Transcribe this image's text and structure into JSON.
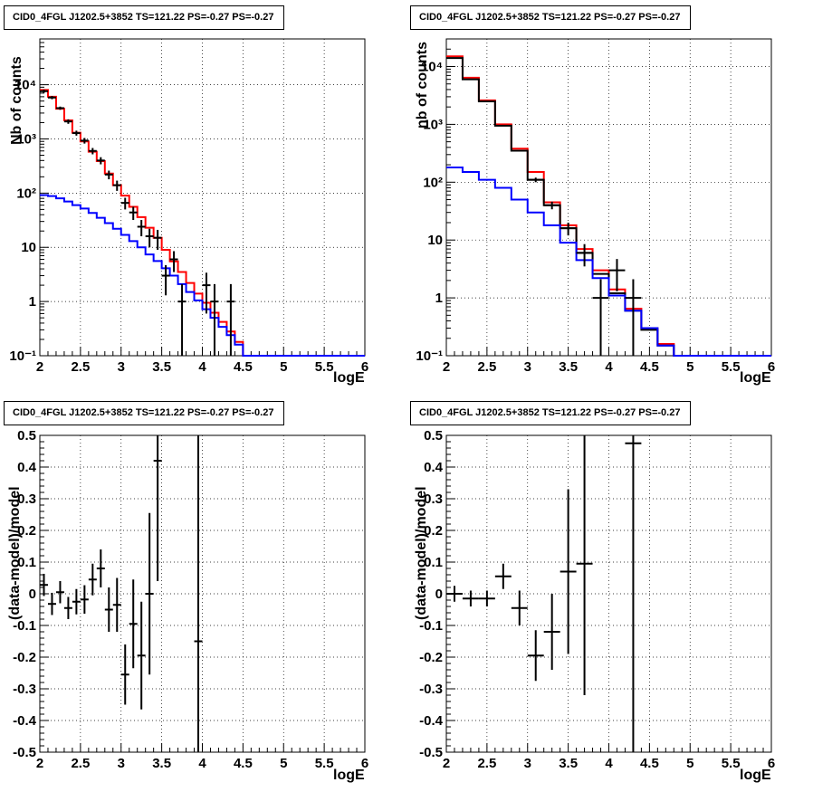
{
  "chart_data": [
    {
      "type": "step-histogram",
      "title": "CID0_4FGL J1202.5+3852 TS=121.22 PS=-0.27 PS=-0.27",
      "xlabel": "logE",
      "ylabel": "Nb of counts",
      "xlim": [
        2,
        6
      ],
      "ylim": [
        0.1,
        70000
      ],
      "yscale": "log",
      "grid": true,
      "x_ticks": [
        "2",
        "2.5",
        "3",
        "3.5",
        "4",
        "4.5",
        "5",
        "5.5",
        "6"
      ],
      "y_ticks": [
        {
          "value": 0.1,
          "label": "10⁻¹"
        },
        {
          "value": 1,
          "label": "1"
        },
        {
          "value": 10,
          "label": "10"
        },
        {
          "value": 100,
          "label": "10²"
        },
        {
          "value": 1000,
          "label": "10³"
        },
        {
          "value": 10000,
          "label": "10⁴"
        }
      ],
      "bin_edges": [
        2.0,
        2.1,
        2.2,
        2.3,
        2.4,
        2.5,
        2.6,
        2.7,
        2.8,
        2.9,
        3.0,
        3.1,
        3.2,
        3.3,
        3.4,
        3.5,
        3.6,
        3.7,
        3.8,
        3.9,
        4.0,
        4.1,
        4.2,
        4.3,
        4.4,
        4.5,
        4.6,
        4.7,
        4.8,
        4.9,
        5.0,
        5.1,
        5.2,
        5.3,
        5.4,
        5.5,
        5.6,
        5.7,
        5.8,
        5.9,
        6.0
      ],
      "series": [
        {
          "color": "#ff0000",
          "values": [
            8000,
            6000,
            3600,
            2200,
            1300,
            900,
            580,
            390,
            230,
            140,
            90,
            56,
            36,
            23,
            15,
            9,
            5.5,
            3.5,
            2.2,
            1.4,
            0.95,
            0.62,
            0.42,
            0.28,
            0.18,
            0.1,
            0.1,
            0.1,
            0.1,
            0.1,
            0.1,
            0.1,
            0.1,
            0.1,
            0.1,
            0.1,
            0.1,
            0.1,
            0.1,
            0.1
          ]
        },
        {
          "color": "#0000ff",
          "values": [
            92,
            88,
            80,
            70,
            60,
            52,
            43,
            35,
            28,
            22,
            17,
            13,
            10,
            7.4,
            5.6,
            4.1,
            3.0,
            2.1,
            1.5,
            1.05,
            0.72,
            0.5,
            0.34,
            0.24,
            0.16,
            0.1,
            0.1,
            0.1,
            0.1,
            0.1,
            0.1,
            0.1,
            0.1,
            0.1,
            0.1,
            0.1,
            0.1,
            0.1,
            0.1,
            0.1
          ]
        }
      ],
      "data_points": [
        {
          "x": 2.05,
          "y": 7600,
          "ylo": 7100,
          "yhi": 8100
        },
        {
          "x": 2.15,
          "y": 5800,
          "ylo": 5400,
          "yhi": 6200
        },
        {
          "x": 2.25,
          "y": 3700,
          "ylo": 3450,
          "yhi": 3950
        },
        {
          "x": 2.35,
          "y": 2100,
          "ylo": 1900,
          "yhi": 2300
        },
        {
          "x": 2.45,
          "y": 1280,
          "ylo": 1150,
          "yhi": 1420
        },
        {
          "x": 2.55,
          "y": 930,
          "ylo": 820,
          "yhi": 1040
        },
        {
          "x": 2.65,
          "y": 600,
          "ylo": 520,
          "yhi": 680
        },
        {
          "x": 2.75,
          "y": 400,
          "ylo": 340,
          "yhi": 460
        },
        {
          "x": 2.85,
          "y": 220,
          "ylo": 180,
          "yhi": 260
        },
        {
          "x": 2.95,
          "y": 140,
          "ylo": 110,
          "yhi": 170
        },
        {
          "x": 3.05,
          "y": 66,
          "ylo": 50,
          "yhi": 82
        },
        {
          "x": 3.15,
          "y": 44,
          "ylo": 32,
          "yhi": 56
        },
        {
          "x": 3.25,
          "y": 24,
          "ylo": 16,
          "yhi": 32
        },
        {
          "x": 3.35,
          "y": 16,
          "ylo": 10,
          "yhi": 22
        },
        {
          "x": 3.45,
          "y": 15,
          "ylo": 9,
          "yhi": 21
        },
        {
          "x": 3.55,
          "y": 3,
          "ylo": 1.3,
          "yhi": 4.7
        },
        {
          "x": 3.65,
          "y": 6,
          "ylo": 3.5,
          "yhi": 8.5
        },
        {
          "x": 3.75,
          "y": 1,
          "ylo": 0.1,
          "yhi": 2.1
        },
        {
          "x": 4.05,
          "y": 2,
          "ylo": 0.6,
          "yhi": 3.4
        },
        {
          "x": 4.15,
          "y": 1,
          "ylo": 0.1,
          "yhi": 2.1
        },
        {
          "x": 4.35,
          "y": 1,
          "ylo": 0.1,
          "yhi": 2.1
        }
      ]
    },
    {
      "type": "step-histogram",
      "title": "CID0_4FGL J1202.5+3852 TS=121.22 PS=-0.27 PS=-0.27",
      "xlabel": "logE",
      "ylabel": "nb of counts",
      "xlim": [
        2,
        6
      ],
      "ylim": [
        0.1,
        30000
      ],
      "yscale": "log",
      "grid": true,
      "x_ticks": [
        "2",
        "2.5",
        "3",
        "3.5",
        "4",
        "4.5",
        "5",
        "5.5",
        "6"
      ],
      "y_ticks": [
        {
          "value": 0.1,
          "label": "10⁻¹"
        },
        {
          "value": 1,
          "label": "1"
        },
        {
          "value": 10,
          "label": "10"
        },
        {
          "value": 100,
          "label": "10²"
        },
        {
          "value": 1000,
          "label": "10³"
        },
        {
          "value": 10000,
          "label": "10⁴"
        }
      ],
      "bin_edges": [
        2.0,
        2.2,
        2.4,
        2.6,
        2.8,
        3.0,
        3.2,
        3.4,
        3.6,
        3.8,
        4.0,
        4.2,
        4.4,
        4.6,
        4.8,
        5.0,
        5.2,
        5.4,
        5.6,
        5.8,
        6.0
      ],
      "series": [
        {
          "color": "#ff0000",
          "values": [
            15000,
            6400,
            2600,
            1000,
            380,
            150,
            45,
            18,
            7,
            3,
            1.4,
            0.65,
            0.3,
            0.16,
            0.1,
            0.1,
            0.1,
            0.1,
            0.1,
            0.1
          ]
        },
        {
          "color": "#000000",
          "values": [
            14000,
            6000,
            2500,
            950,
            350,
            110,
            40,
            16,
            6,
            2.6,
            1.2,
            0.6,
            0.28,
            0.15,
            0.1,
            0.1,
            0.1,
            0.1,
            0.1,
            0.1
          ]
        },
        {
          "color": "#0000ff",
          "values": [
            180,
            150,
            110,
            80,
            50,
            30,
            18,
            9,
            4.5,
            2.2,
            1.1,
            0.6,
            0.3,
            0.15,
            0.1,
            0.1,
            0.1,
            0.1,
            0.1,
            0.1
          ]
        }
      ],
      "data_points": [
        {
          "x": 3.1,
          "y": 110,
          "ylo": 100,
          "yhi": 120
        },
        {
          "x": 3.3,
          "y": 40,
          "ylo": 34,
          "yhi": 46
        },
        {
          "x": 3.5,
          "y": 16,
          "ylo": 12,
          "yhi": 20
        },
        {
          "x": 3.7,
          "y": 6,
          "ylo": 3.5,
          "yhi": 8.5
        },
        {
          "x": 3.9,
          "y": 1,
          "ylo": 0.1,
          "yhi": 2.1
        },
        {
          "x": 4.1,
          "y": 3,
          "ylo": 1.3,
          "yhi": 4.7
        },
        {
          "x": 4.3,
          "y": 1,
          "ylo": 0.1,
          "yhi": 2.1
        }
      ]
    },
    {
      "type": "errorbar",
      "title": "CID0_4FGL J1202.5+3852 TS=121.22 PS=-0.27 PS=-0.27",
      "xlabel": "logE",
      "ylabel": "(data-model)/model",
      "xlim": [
        2,
        6
      ],
      "ylim": [
        -0.5,
        0.5
      ],
      "grid": true,
      "x_ticks": [
        "2",
        "2.5",
        "3",
        "3.5",
        "4",
        "4.5",
        "5",
        "5.5",
        "6"
      ],
      "y_ticks": [
        "-0.5",
        "-0.4",
        "-0.3",
        "-0.2",
        "-0.1",
        "0",
        "0.1",
        "0.2",
        "0.3",
        "0.4",
        "0.5"
      ],
      "xhalf": 0.05,
      "points": [
        {
          "x": 2.05,
          "y": 0.028,
          "err": 0.035
        },
        {
          "x": 2.15,
          "y": -0.032,
          "err": 0.035
        },
        {
          "x": 2.25,
          "y": 0.005,
          "err": 0.035
        },
        {
          "x": 2.35,
          "y": -0.045,
          "err": 0.035
        },
        {
          "x": 2.45,
          "y": -0.025,
          "err": 0.04
        },
        {
          "x": 2.55,
          "y": -0.018,
          "err": 0.045
        },
        {
          "x": 2.65,
          "y": 0.045,
          "err": 0.05
        },
        {
          "x": 2.75,
          "y": 0.08,
          "err": 0.06
        },
        {
          "x": 2.85,
          "y": -0.05,
          "err": 0.07
        },
        {
          "x": 2.95,
          "y": -0.035,
          "err": 0.085
        },
        {
          "x": 3.05,
          "y": -0.255,
          "err": 0.095
        },
        {
          "x": 3.15,
          "y": -0.095,
          "err": 0.14
        },
        {
          "x": 3.25,
          "y": -0.195,
          "err": 0.17
        },
        {
          "x": 3.35,
          "y": 0.0,
          "err": 0.255
        },
        {
          "x": 3.45,
          "y": 0.42,
          "err": 0.38
        },
        {
          "x": 3.95,
          "y": -0.15,
          "err": 1.0
        }
      ]
    },
    {
      "type": "errorbar",
      "title": "CID0_4FGL J1202.5+3852 TS=121.22 PS=-0.27 PS=-0.27",
      "xlabel": "logE",
      "ylabel": "(data-model)/model",
      "xlim": [
        2,
        6
      ],
      "ylim": [
        -0.5,
        0.5
      ],
      "grid": true,
      "x_ticks": [
        "2",
        "2.5",
        "3",
        "3.5",
        "4",
        "4.5",
        "5",
        "5.5",
        "6"
      ],
      "y_ticks": [
        "-0.5",
        "-0.4",
        "-0.3",
        "-0.2",
        "-0.1",
        "0",
        "0.1",
        "0.2",
        "0.3",
        "0.4",
        "0.5"
      ],
      "xhalf": 0.1,
      "points": [
        {
          "x": 2.1,
          "y": 0.0,
          "err": 0.025
        },
        {
          "x": 2.3,
          "y": -0.015,
          "err": 0.025
        },
        {
          "x": 2.5,
          "y": -0.015,
          "err": 0.025
        },
        {
          "x": 2.7,
          "y": 0.055,
          "err": 0.04
        },
        {
          "x": 2.9,
          "y": -0.045,
          "err": 0.055
        },
        {
          "x": 3.1,
          "y": -0.195,
          "err": 0.08
        },
        {
          "x": 3.3,
          "y": -0.12,
          "err": 0.12
        },
        {
          "x": 3.5,
          "y": 0.07,
          "err": 0.26
        },
        {
          "x": 3.7,
          "y": 0.095,
          "err": 0.415
        },
        {
          "x": 4.3,
          "y": 0.475,
          "err": 1.0
        }
      ]
    }
  ]
}
